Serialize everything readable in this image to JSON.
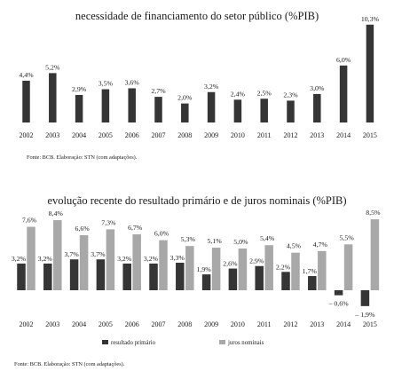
{
  "colors": {
    "dark": "#353535",
    "light": "#a8a8a8",
    "text": "#1a1a1a"
  },
  "chart_data": [
    {
      "type": "bar",
      "title": "necessidade de financiamento do setor público (%PIB)",
      "categories": [
        "2002",
        "2003",
        "2004",
        "2005",
        "2006",
        "2007",
        "2008",
        "2009",
        "2010",
        "2011",
        "2012",
        "2013",
        "2014",
        "2015"
      ],
      "values": [
        4.4,
        5.2,
        2.9,
        3.5,
        3.6,
        2.7,
        2.0,
        3.2,
        2.4,
        2.5,
        2.3,
        3.0,
        6.0,
        10.3
      ],
      "value_labels": [
        "4,4%",
        "5,2%",
        "2,9%",
        "3,5%",
        "3,6%",
        "2,7%",
        "2,0%",
        "3,2%",
        "2,4%",
        "2,5%",
        "2,3%",
        "3,0%",
        "6,0%",
        "10,3%"
      ],
      "source": "Fonte: BCB. Elaboração: STN (com adaptações).",
      "xlabel": "",
      "ylabel": "",
      "grid": false
    },
    {
      "type": "bar",
      "title": "evolução recente do resultado primário e de juros nominais (%PIB)",
      "categories": [
        "2002",
        "2003",
        "2004",
        "2005",
        "2006",
        "2007",
        "2008",
        "2009",
        "2010",
        "2011",
        "2012",
        "2013",
        "2014",
        "2015"
      ],
      "series": [
        {
          "name": "resultado primário",
          "values": [
            3.2,
            3.2,
            3.7,
            3.7,
            3.2,
            3.2,
            3.3,
            1.9,
            2.6,
            2.9,
            2.2,
            1.7,
            -0.6,
            -1.9
          ],
          "value_labels": [
            "3,2%",
            "3,2%",
            "3,7%",
            "3,7%",
            "3,2%",
            "3,2%",
            "3,3%",
            "1,9%",
            "2,6%",
            "2,9%",
            "2,2%",
            "1,7%",
            "– 0,6%",
            "– 1,9%"
          ]
        },
        {
          "name": "juros nominais",
          "values": [
            7.6,
            8.4,
            6.6,
            7.3,
            6.7,
            6.0,
            5.3,
            5.1,
            5.0,
            5.4,
            4.5,
            4.7,
            5.5,
            8.5
          ],
          "value_labels": [
            "7,6%",
            "8,4%",
            "6,6%",
            "7,3%",
            "6,7%",
            "6,0%",
            "5,3%",
            "5,1%",
            "5,0%",
            "5,4%",
            "4,5%",
            "4,7%",
            "5,5%",
            "8,5%"
          ]
        }
      ],
      "legend_position": "bottom",
      "source": "Fonte: BCB. Elaboração: STN (com adaptações).",
      "xlabel": "",
      "ylabel": "",
      "grid": false
    }
  ]
}
